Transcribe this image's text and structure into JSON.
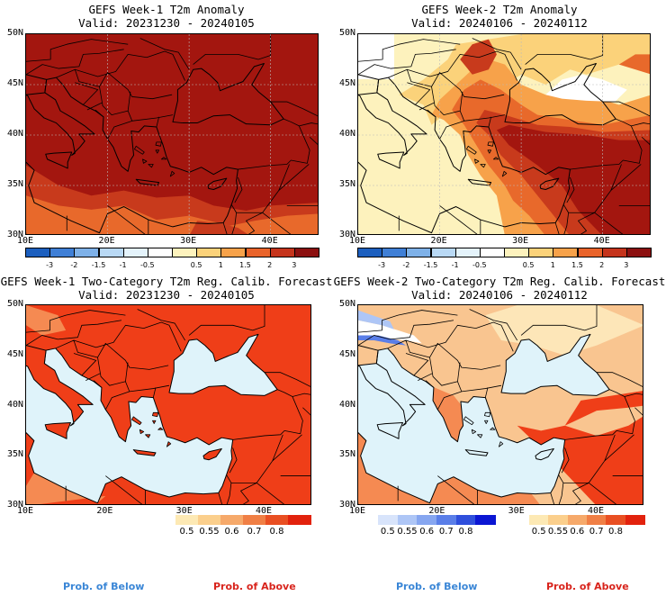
{
  "panels": {
    "p1": {
      "title": "GEFS Week-1 T2m Anomaly",
      "valid": "Valid: 20231230 - 20240105"
    },
    "p2": {
      "title": "GEFS Week-2 T2m Anomaly",
      "valid": "Valid: 20240106 - 20240112"
    },
    "p3": {
      "title": "GEFS Week-1 Two-Category T2m Reg. Calib. Forecast",
      "valid": "Valid: 20231230 - 20240105"
    },
    "p4": {
      "title": "GEFS Week-2 Two-Category T2m Reg. Calib. Forecast",
      "valid": "Valid: 20240106 - 20240112"
    }
  },
  "axes": {
    "lat_labels": [
      "50N",
      "45N",
      "40N",
      "35N",
      "30N"
    ],
    "lon_labels": [
      "10E",
      "20E",
      "30E",
      "40E"
    ]
  },
  "anomaly_colorbar": {
    "ticks": [
      "-3",
      "-2",
      "-1.5",
      "-1",
      "-0.5",
      "0.5",
      "1",
      "1.5",
      "2",
      "3"
    ],
    "colors": [
      "#1c5fbf",
      "#3f7fd6",
      "#7eb1e8",
      "#b9d9f5",
      "#e4f3fb",
      "#ffffff",
      "#fdf2bd",
      "#fbd27a",
      "#f7a24a",
      "#e9632a",
      "#c5341c",
      "#8c1010"
    ]
  },
  "prob_colorbar": {
    "ticks": [
      "0.5",
      "0.55",
      "0.6",
      "0.7",
      "0.8"
    ],
    "above_colors": [
      "#fde9b4",
      "#fbcf8c",
      "#f6a96a",
      "#f07f45",
      "#e94f22",
      "#e2220d"
    ],
    "below_colors": [
      "#d8e4fb",
      "#aec6f6",
      "#86a6f0",
      "#5a7ee8",
      "#2f4fdc",
      "#0b16d3"
    ]
  },
  "prob_labels": {
    "below": "Prob. of Below",
    "above": "Prob. of Above",
    "below_color": "#3a86d6",
    "above_color": "#d8241c"
  },
  "map_colors": {
    "sea": "#dff3fa",
    "anom_deep": "#a3160f",
    "anom_mid": "#c83a1c",
    "anom_orange": "#e8692b",
    "anom_light": "#f7a24a",
    "anom_pale": "#fbd27a",
    "anom_cream": "#fdf2bd",
    "prob_high": "#ef3e18",
    "prob_mid": "#f58a52",
    "prob_low": "#f9c590",
    "prob_pale": "#fde6b8"
  }
}
